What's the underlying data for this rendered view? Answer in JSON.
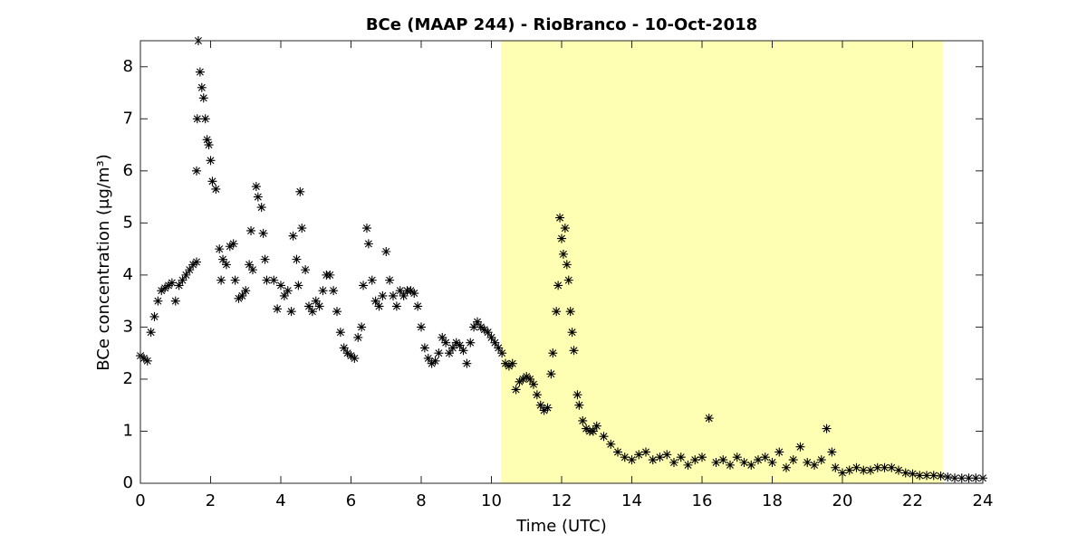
{
  "chart_data": {
    "type": "scatter",
    "title": "BCe (MAAP 244) - RioBranco - 10-Oct-2018",
    "xlabel": "Time (UTC)",
    "ylabel": "BCe concentration (μg/m³)",
    "xlim": [
      0,
      24
    ],
    "ylim": [
      0,
      8.5
    ],
    "xticks": [
      0,
      2,
      4,
      6,
      8,
      10,
      12,
      14,
      16,
      18,
      20,
      22,
      24
    ],
    "yticks": [
      0,
      1,
      2,
      3,
      4,
      5,
      6,
      7,
      8
    ],
    "color": "#000000",
    "shaded": [
      10.27,
      22.86
    ],
    "shade_color": "#ffffb3",
    "x": [
      0.0,
      0.1,
      0.2,
      0.3,
      0.4,
      0.5,
      0.6,
      0.7,
      0.8,
      0.9,
      1.0,
      1.1,
      1.2,
      1.3,
      1.4,
      1.5,
      1.6,
      1.6,
      1.62,
      1.65,
      1.7,
      1.75,
      1.8,
      1.85,
      1.9,
      1.95,
      2.0,
      2.05,
      2.15,
      2.25,
      2.3,
      2.35,
      2.45,
      2.55,
      2.65,
      2.7,
      2.8,
      2.9,
      3.0,
      3.1,
      3.15,
      3.2,
      3.3,
      3.35,
      3.45,
      3.5,
      3.55,
      3.6,
      3.8,
      3.9,
      4.0,
      4.1,
      4.2,
      4.3,
      4.35,
      4.45,
      4.5,
      4.55,
      4.6,
      4.7,
      4.8,
      4.9,
      5.0,
      5.1,
      5.2,
      5.3,
      5.4,
      5.5,
      5.6,
      5.7,
      5.8,
      5.9,
      6.0,
      6.1,
      6.2,
      6.3,
      6.35,
      6.45,
      6.5,
      6.6,
      6.7,
      6.8,
      6.9,
      7.0,
      7.1,
      7.2,
      7.3,
      7.4,
      7.5,
      7.6,
      7.7,
      7.8,
      7.9,
      8.0,
      8.1,
      8.2,
      8.3,
      8.4,
      8.5,
      8.6,
      8.7,
      8.8,
      8.9,
      9.0,
      9.1,
      9.2,
      9.3,
      9.4,
      9.5,
      9.6,
      9.7,
      9.8,
      9.9,
      10.0,
      10.1,
      10.2,
      10.3,
      10.4,
      10.5,
      10.6,
      10.7,
      10.8,
      10.9,
      11.0,
      11.1,
      11.2,
      11.3,
      11.4,
      11.5,
      11.6,
      11.7,
      11.75,
      11.85,
      11.9,
      11.95,
      12.0,
      12.05,
      12.1,
      12.15,
      12.2,
      12.25,
      12.3,
      12.35,
      12.45,
      12.5,
      12.6,
      12.7,
      12.8,
      12.9,
      13.0,
      13.2,
      13.4,
      13.6,
      13.8,
      14.0,
      14.2,
      14.4,
      14.6,
      14.8,
      15.0,
      15.2,
      15.4,
      15.6,
      15.8,
      16.0,
      16.2,
      16.4,
      16.6,
      16.8,
      17.0,
      17.2,
      17.4,
      17.6,
      17.8,
      18.0,
      18.2,
      18.4,
      18.6,
      18.8,
      19.0,
      19.2,
      19.4,
      19.55,
      19.7,
      19.8,
      20.0,
      20.2,
      20.4,
      20.6,
      20.8,
      21.0,
      21.2,
      21.4,
      21.6,
      21.8,
      22.0,
      22.2,
      22.4,
      22.6,
      22.8,
      23.0,
      23.2,
      23.4,
      23.6,
      23.8,
      24.0
    ],
    "values": [
      2.45,
      2.4,
      2.35,
      2.9,
      3.2,
      3.5,
      3.7,
      3.75,
      3.8,
      3.85,
      3.5,
      3.8,
      3.9,
      4.0,
      4.1,
      4.2,
      4.25,
      6.0,
      7.0,
      8.5,
      7.9,
      7.6,
      7.4,
      7.0,
      6.6,
      6.5,
      6.2,
      5.8,
      5.65,
      4.5,
      3.9,
      4.3,
      4.2,
      4.55,
      4.6,
      3.9,
      3.55,
      3.6,
      3.7,
      4.2,
      4.85,
      4.1,
      5.7,
      5.5,
      5.3,
      4.8,
      4.3,
      3.9,
      3.9,
      3.35,
      3.8,
      3.6,
      3.7,
      3.3,
      4.75,
      4.3,
      3.8,
      5.6,
      4.9,
      4.1,
      3.4,
      3.3,
      3.5,
      3.4,
      3.7,
      4.0,
      4.0,
      3.7,
      3.3,
      2.9,
      2.6,
      2.5,
      2.45,
      2.4,
      2.8,
      3.0,
      3.8,
      4.9,
      4.6,
      3.9,
      3.5,
      3.4,
      3.6,
      4.45,
      3.9,
      3.6,
      3.4,
      3.7,
      3.6,
      3.7,
      3.7,
      3.65,
      3.4,
      3.0,
      2.6,
      2.4,
      2.3,
      2.35,
      2.5,
      2.8,
      2.7,
      2.5,
      2.6,
      2.7,
      2.65,
      2.55,
      2.3,
      2.7,
      3.0,
      3.1,
      3.0,
      2.95,
      2.9,
      2.8,
      2.7,
      2.6,
      2.5,
      2.3,
      2.25,
      2.3,
      1.8,
      1.95,
      2.0,
      2.05,
      2.0,
      1.9,
      1.7,
      1.5,
      1.4,
      1.45,
      2.1,
      2.5,
      3.3,
      3.8,
      5.1,
      4.7,
      4.4,
      4.9,
      4.2,
      3.9,
      3.3,
      2.9,
      2.55,
      1.7,
      1.5,
      1.2,
      1.05,
      1.0,
      1.0,
      1.1,
      0.9,
      0.75,
      0.6,
      0.5,
      0.45,
      0.55,
      0.6,
      0.45,
      0.5,
      0.55,
      0.4,
      0.5,
      0.35,
      0.45,
      0.5,
      1.25,
      0.4,
      0.45,
      0.35,
      0.5,
      0.4,
      0.35,
      0.45,
      0.5,
      0.4,
      0.6,
      0.3,
      0.45,
      0.7,
      0.4,
      0.35,
      0.45,
      1.05,
      0.6,
      0.3,
      0.2,
      0.25,
      0.3,
      0.25,
      0.25,
      0.3,
      0.3,
      0.3,
      0.25,
      0.2,
      0.18,
      0.15,
      0.15,
      0.15,
      0.14,
      0.12,
      0.1,
      0.1,
      0.1,
      0.1,
      0.1
    ]
  }
}
